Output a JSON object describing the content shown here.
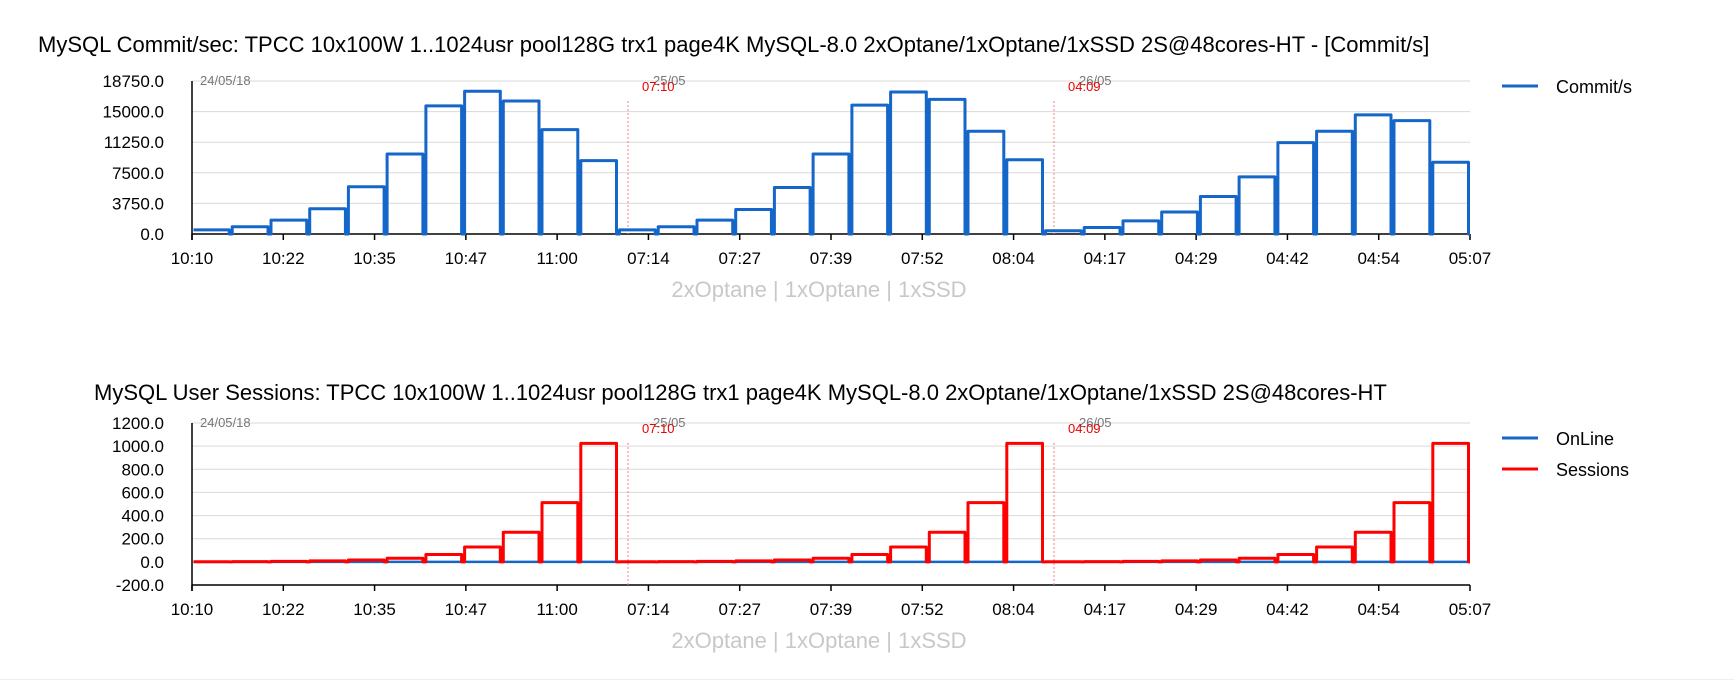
{
  "colors": {
    "commit": "#1466c8",
    "online": "#1466c8",
    "sessions": "#ff0000",
    "grid": "#d9d9d9",
    "xlabel": "#c8c8c8"
  },
  "chart_data": [
    {
      "type": "line",
      "title": "MySQL Commit/sec: TPCC 10x100W 1..1024usr pool128G trx1 page4K MySQL-8.0 2xOptane/1xOptane/1xSSD 2S@48cores-HT - [Commit/s]",
      "xlabel": "2xOptane | 1xOptane | 1xSSD",
      "ylim": [
        0,
        18750
      ],
      "y_ticks": [
        "18750.0",
        "15000.0",
        "11250.0",
        "7500.0",
        "3750.0",
        "0.0"
      ],
      "y_tick_values": [
        18750,
        15000,
        11250,
        7500,
        3750,
        0
      ],
      "x_ticks": [
        "10:10",
        "10:22",
        "10:35",
        "10:47",
        "11:00",
        "07:14",
        "07:27",
        "07:39",
        "07:52",
        "08:04",
        "04:17",
        "04:29",
        "04:42",
        "04:54",
        "05:07"
      ],
      "segments": [
        {
          "date": "24/05/18",
          "time": ""
        },
        {
          "date": "25/05",
          "time": "07:10"
        },
        {
          "date": "26/05",
          "time": "04:09"
        }
      ],
      "series": [
        {
          "name": "Commit/s",
          "levels": [
            [
              500,
              900,
              1700,
              3100,
              5800,
              9800,
              15700,
              17500,
              16300,
              12800,
              9000
            ],
            [
              500,
              900,
              1700,
              3000,
              5700,
              9800,
              15800,
              17400,
              16500,
              12600,
              9100
            ],
            [
              400,
              800,
              1600,
              2700,
              4600,
              7000,
              11200,
              12600,
              14600,
              13900,
              8800
            ]
          ]
        }
      ]
    },
    {
      "type": "line",
      "title": "MySQL User Sessions: TPCC 10x100W 1..1024usr pool128G trx1 page4K MySQL-8.0 2xOptane/1xOptane/1xSSD 2S@48cores-HT",
      "xlabel": "2xOptane | 1xOptane | 1xSSD",
      "ylim": [
        -200,
        1200
      ],
      "y_ticks": [
        "1200.0",
        "1000.0",
        "800.0",
        "600.0",
        "400.0",
        "200.0",
        "0.0",
        "-200.0"
      ],
      "y_tick_values": [
        1200,
        1000,
        800,
        600,
        400,
        200,
        0,
        -200
      ],
      "x_ticks": [
        "10:10",
        "10:22",
        "10:35",
        "10:47",
        "11:00",
        "07:14",
        "07:27",
        "07:39",
        "07:52",
        "08:04",
        "04:17",
        "04:29",
        "04:42",
        "04:54",
        "05:07"
      ],
      "segments": [
        {
          "date": "24/05/18",
          "time": ""
        },
        {
          "date": "25/05",
          "time": "07:10"
        },
        {
          "date": "26/05",
          "time": "04:09"
        }
      ],
      "series": [
        {
          "name": "OnLine",
          "levels": [
            [
              0,
              0,
              0,
              0,
              0,
              0,
              0,
              0,
              0,
              0,
              0
            ],
            [
              0,
              0,
              0,
              0,
              0,
              0,
              0,
              0,
              0,
              0,
              0
            ],
            [
              0,
              0,
              0,
              0,
              0,
              0,
              0,
              0,
              0,
              0,
              0
            ]
          ]
        },
        {
          "name": "Sessions",
          "levels": [
            [
              1,
              2,
              4,
              8,
              16,
              32,
              64,
              128,
              256,
              512,
              1024
            ],
            [
              1,
              2,
              4,
              8,
              16,
              32,
              64,
              128,
              256,
              512,
              1024
            ],
            [
              1,
              2,
              4,
              8,
              16,
              32,
              64,
              128,
              256,
              512,
              1024
            ]
          ]
        }
      ]
    }
  ]
}
